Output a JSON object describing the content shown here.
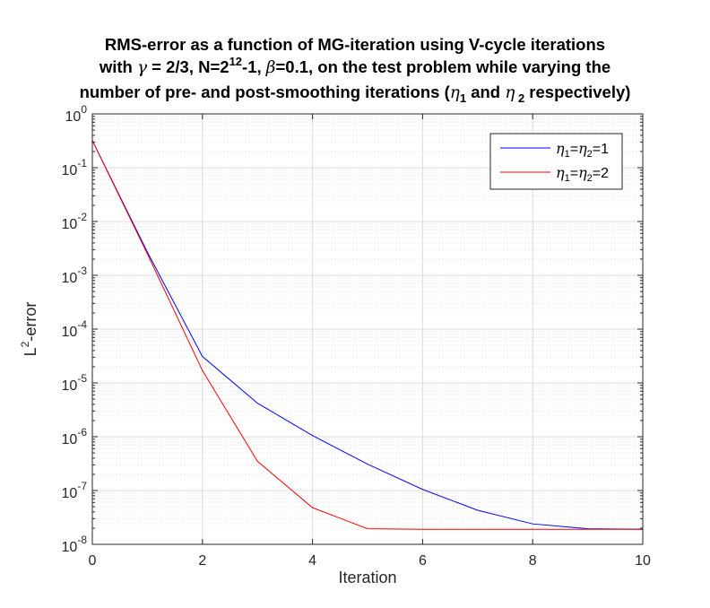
{
  "chart_data": {
    "type": "line",
    "title_lines": [
      [
        "RMS-error as a function of MG-iteration using V-cycle iterations"
      ],
      [
        "with ",
        "γ",
        " = 2/3, N=2",
        "12",
        "-1, ",
        "β",
        "=0.1, on the test problem while varying the"
      ],
      [
        "number of pre- and post-smoothing iterations (",
        "η",
        "1",
        " and ",
        "η",
        " 2",
        " respectively)"
      ]
    ],
    "xlabel": "Iteration",
    "ylabel_base": "L",
    "ylabel_sup": "2",
    "ylabel_rest": "-error",
    "x_ticks": [
      "0",
      "2",
      "4",
      "6",
      "8",
      "10"
    ],
    "y_tick_base": "10",
    "y_tick_exponents": [
      "0",
      "-1",
      "-2",
      "-3",
      "-4",
      "-5",
      "-6",
      "-7",
      "-8"
    ],
    "xlim": [
      0,
      10
    ],
    "ylim": [
      1e-08,
      1
    ],
    "yscale": "log",
    "grid": true,
    "minor_grid": true,
    "legend_position": "top-right",
    "series": [
      {
        "name_parts": [
          "η",
          "1",
          "=",
          "η",
          "2",
          "=1"
        ],
        "color": "#0000ff",
        "x": [
          0,
          1,
          2,
          3,
          4,
          5,
          6,
          7,
          8,
          9,
          10
        ],
        "y": [
          0.32,
          0.0027,
          3.1e-05,
          4.2e-06,
          1.05e-06,
          3.1e-07,
          1.05e-07,
          4.3e-08,
          2.4e-08,
          1.95e-08,
          1.9e-08
        ]
      },
      {
        "name_parts": [
          "η",
          "1",
          "=",
          "η",
          "2",
          "=2"
        ],
        "color": "#ff0000",
        "x": [
          0,
          1,
          2,
          3,
          4,
          5,
          6,
          7,
          8,
          9,
          10
        ],
        "y": [
          0.32,
          0.0025,
          1.7e-05,
          3.5e-07,
          4.8e-08,
          1.95e-08,
          1.9e-08,
          1.9e-08,
          1.9e-08,
          1.9e-08,
          1.9e-08
        ]
      }
    ]
  }
}
